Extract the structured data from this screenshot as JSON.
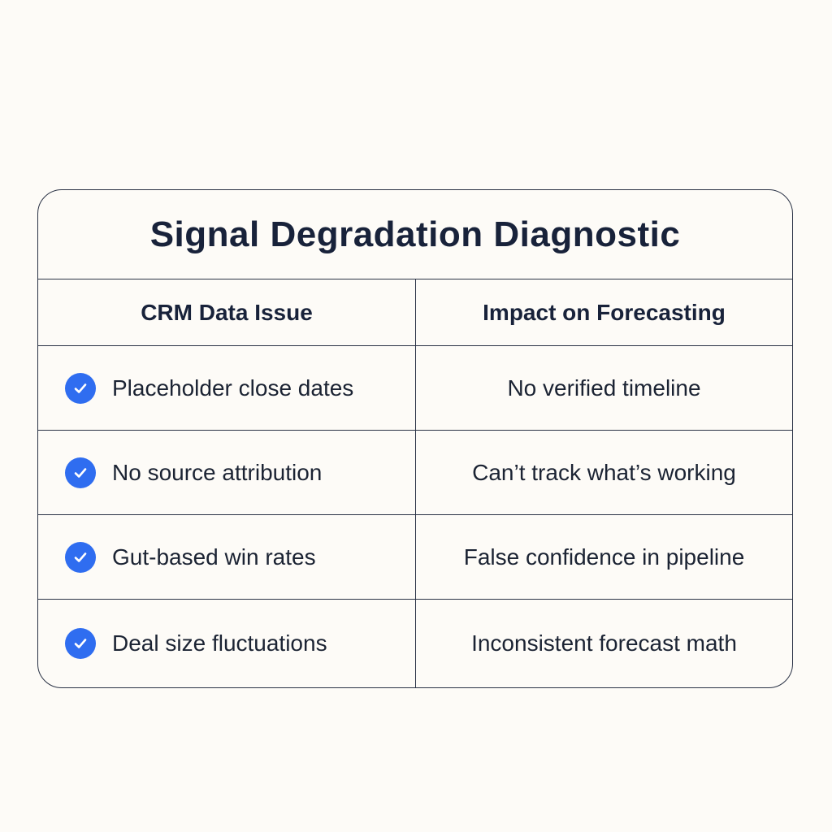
{
  "title": "Signal Degradation Diagnostic",
  "columns": {
    "issue": "CRM Data Issue",
    "impact": "Impact on Forecasting"
  },
  "rows": [
    {
      "issue": "Placeholder close dates",
      "impact": "No verified timeline",
      "icon": "check-circle-icon"
    },
    {
      "issue": "No source attribution",
      "impact": "Can’t track what’s working",
      "icon": "check-circle-icon"
    },
    {
      "issue": "Gut-based win rates",
      "impact": "False confidence in pipeline",
      "icon": "check-circle-icon"
    },
    {
      "issue": "Deal size fluctuations",
      "impact": "Inconsistent forecast math",
      "icon": "check-circle-icon"
    }
  ],
  "colors": {
    "accent": "#2f6df0",
    "border": "#2a3245",
    "text": "#1b2333",
    "background": "#fdfbf7"
  }
}
